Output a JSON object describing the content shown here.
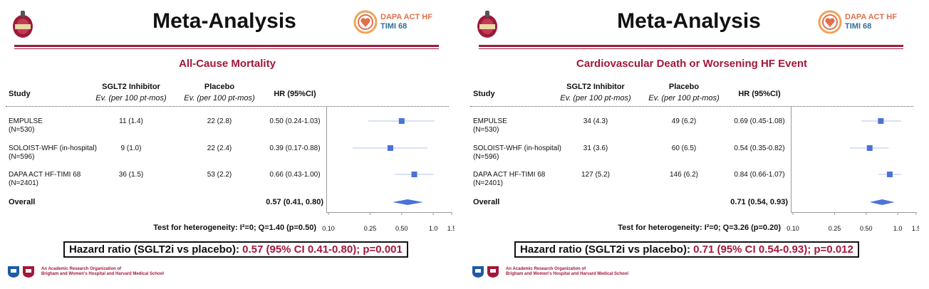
{
  "panels": [
    {
      "slide_title": "Meta-Analysis",
      "logo": {
        "name": "TIMI",
        "trial_line1": "DAPA ACT HF",
        "trial_line2": "TIMI 68"
      },
      "section_title": "All-Cause Mortality",
      "headers": {
        "study": "Study",
        "arm1": "SGLT2 Inhibitor",
        "arm1_sub": "Ev. (per 100 pt-mos)",
        "arm2": "Placebo",
        "arm2_sub": "Ev. (per 100 pt-mos)",
        "hr": "HR (95%CI)"
      },
      "studies": [
        {
          "name": "EMPULSE",
          "n": "(N=530)",
          "arm1": "11 (1.4)",
          "arm2": "22 (2.8)",
          "hr_text": "0.50 (0.24-1.03)"
        },
        {
          "name": "SOLOIST-WHF (in-hospital)",
          "n": "(N=596)",
          "arm1": "9 (1.0)",
          "arm2": "22 (2.4)",
          "hr_text": "0.39 (0.17-0.88)"
        },
        {
          "name": "DAPA ACT HF-TIMI 68",
          "n": "(N=2401)",
          "arm1": "36 (1.5)",
          "arm2": "53 (2.2)",
          "hr_text": "0.66 (0.43-1.00)"
        }
      ],
      "overall": {
        "label": "Overall",
        "hr_text": "0.57 (0.41, 0.80)"
      },
      "heterogeneity": "Test for heterogeneity: I²=0; Q=1.40 (p=0.50)",
      "hr_summary": {
        "prefix": "Hazard ratio (SGLT2i vs placebo):",
        "value": "0.57 (95% CI 0.41-0.80); p=0.001"
      },
      "aro": {
        "line1": "An Academic Research Organization of",
        "line2": "Brigham and Women's Hospital and Harvard Medical School"
      }
    },
    {
      "slide_title": "Meta-Analysis",
      "logo": {
        "name": "TIMI",
        "trial_line1": "DAPA ACT HF",
        "trial_line2": "TIMI 68"
      },
      "section_title": "Cardiovascular Death or Worsening HF Event",
      "headers": {
        "study": "Study",
        "arm1": "SGLT2 Inhibitor",
        "arm1_sub": "Ev. (per 100 pt-mos)",
        "arm2": "Placebo",
        "arm2_sub": "Ev. (per 100 pt-mos)",
        "hr": "HR (95%CI)"
      },
      "studies": [
        {
          "name": "EMPULSE",
          "n": "(N=530)",
          "arm1": "34 (4.3)",
          "arm2": "49 (6.2)",
          "hr_text": "0.69 (0.45-1.08)"
        },
        {
          "name": "SOLOIST-WHF (in-hospital)",
          "n": "(N=596)",
          "arm1": "31 (3.6)",
          "arm2": "60 (6.5)",
          "hr_text": "0.54 (0.35-0.82)"
        },
        {
          "name": "DAPA ACT HF-TIMI 68",
          "n": "(N=2401)",
          "arm1": "127 (5.2)",
          "arm2": "146 (6.2)",
          "hr_text": "0.84 (0.66-1.07)"
        }
      ],
      "overall": {
        "label": "Overall",
        "hr_text": "0.71 (0.54, 0.93)"
      },
      "heterogeneity": "Test for heterogeneity: I²=0; Q=3.26 (p=0.20)",
      "hr_summary": {
        "prefix": "Hazard ratio (SGLT2i vs placebo):",
        "value": "0.71 (95% CI 0.54-0.93); p=0.012"
      },
      "aro": {
        "line1": "An Academic Research Organization of",
        "line2": "Brigham and Women's Hospital and Harvard Medical School"
      }
    }
  ],
  "chart_data": [
    {
      "type": "forest",
      "title": "All-Cause Mortality",
      "scale": "log",
      "xlim": [
        0.1,
        1.5
      ],
      "x_ticks": [
        0.1,
        0.25,
        0.5,
        1.0,
        1.5
      ],
      "x_tick_labels": [
        "0.10",
        "0.25",
        "0.50",
        "1.0",
        "1.5"
      ],
      "marker_color": "#4a72d8",
      "studies": [
        {
          "name": "EMPULSE",
          "hr": 0.5,
          "lower": 0.24,
          "upper": 1.03
        },
        {
          "name": "SOLOIST-WHF (in-hospital)",
          "hr": 0.39,
          "lower": 0.17,
          "upper": 0.88
        },
        {
          "name": "DAPA ACT HF-TIMI 68",
          "hr": 0.66,
          "lower": 0.43,
          "upper": 1.0
        }
      ],
      "overall": {
        "hr": 0.57,
        "lower": 0.41,
        "upper": 0.8
      }
    },
    {
      "type": "forest",
      "title": "Cardiovascular Death or Worsening HF Event",
      "scale": "log",
      "xlim": [
        0.1,
        1.5
      ],
      "x_ticks": [
        0.1,
        0.25,
        0.5,
        1.0,
        1.5
      ],
      "x_tick_labels": [
        "0.10",
        "0.25",
        "0.50",
        "1.0",
        "1.5"
      ],
      "marker_color": "#4a72d8",
      "studies": [
        {
          "name": "EMPULSE",
          "hr": 0.69,
          "lower": 0.45,
          "upper": 1.08
        },
        {
          "name": "SOLOIST-WHF (in-hospital)",
          "hr": 0.54,
          "lower": 0.35,
          "upper": 0.82
        },
        {
          "name": "DAPA ACT HF-TIMI 68",
          "hr": 0.84,
          "lower": 0.66,
          "upper": 1.07
        }
      ],
      "overall": {
        "hr": 0.71,
        "lower": 0.54,
        "upper": 0.93
      }
    }
  ],
  "colors": {
    "accent": "#a3173b",
    "rule": "#9b1b3a",
    "marker": "#4a72d8",
    "dapa_orange": "#e2704a",
    "dapa_blue": "#2e6f98"
  }
}
